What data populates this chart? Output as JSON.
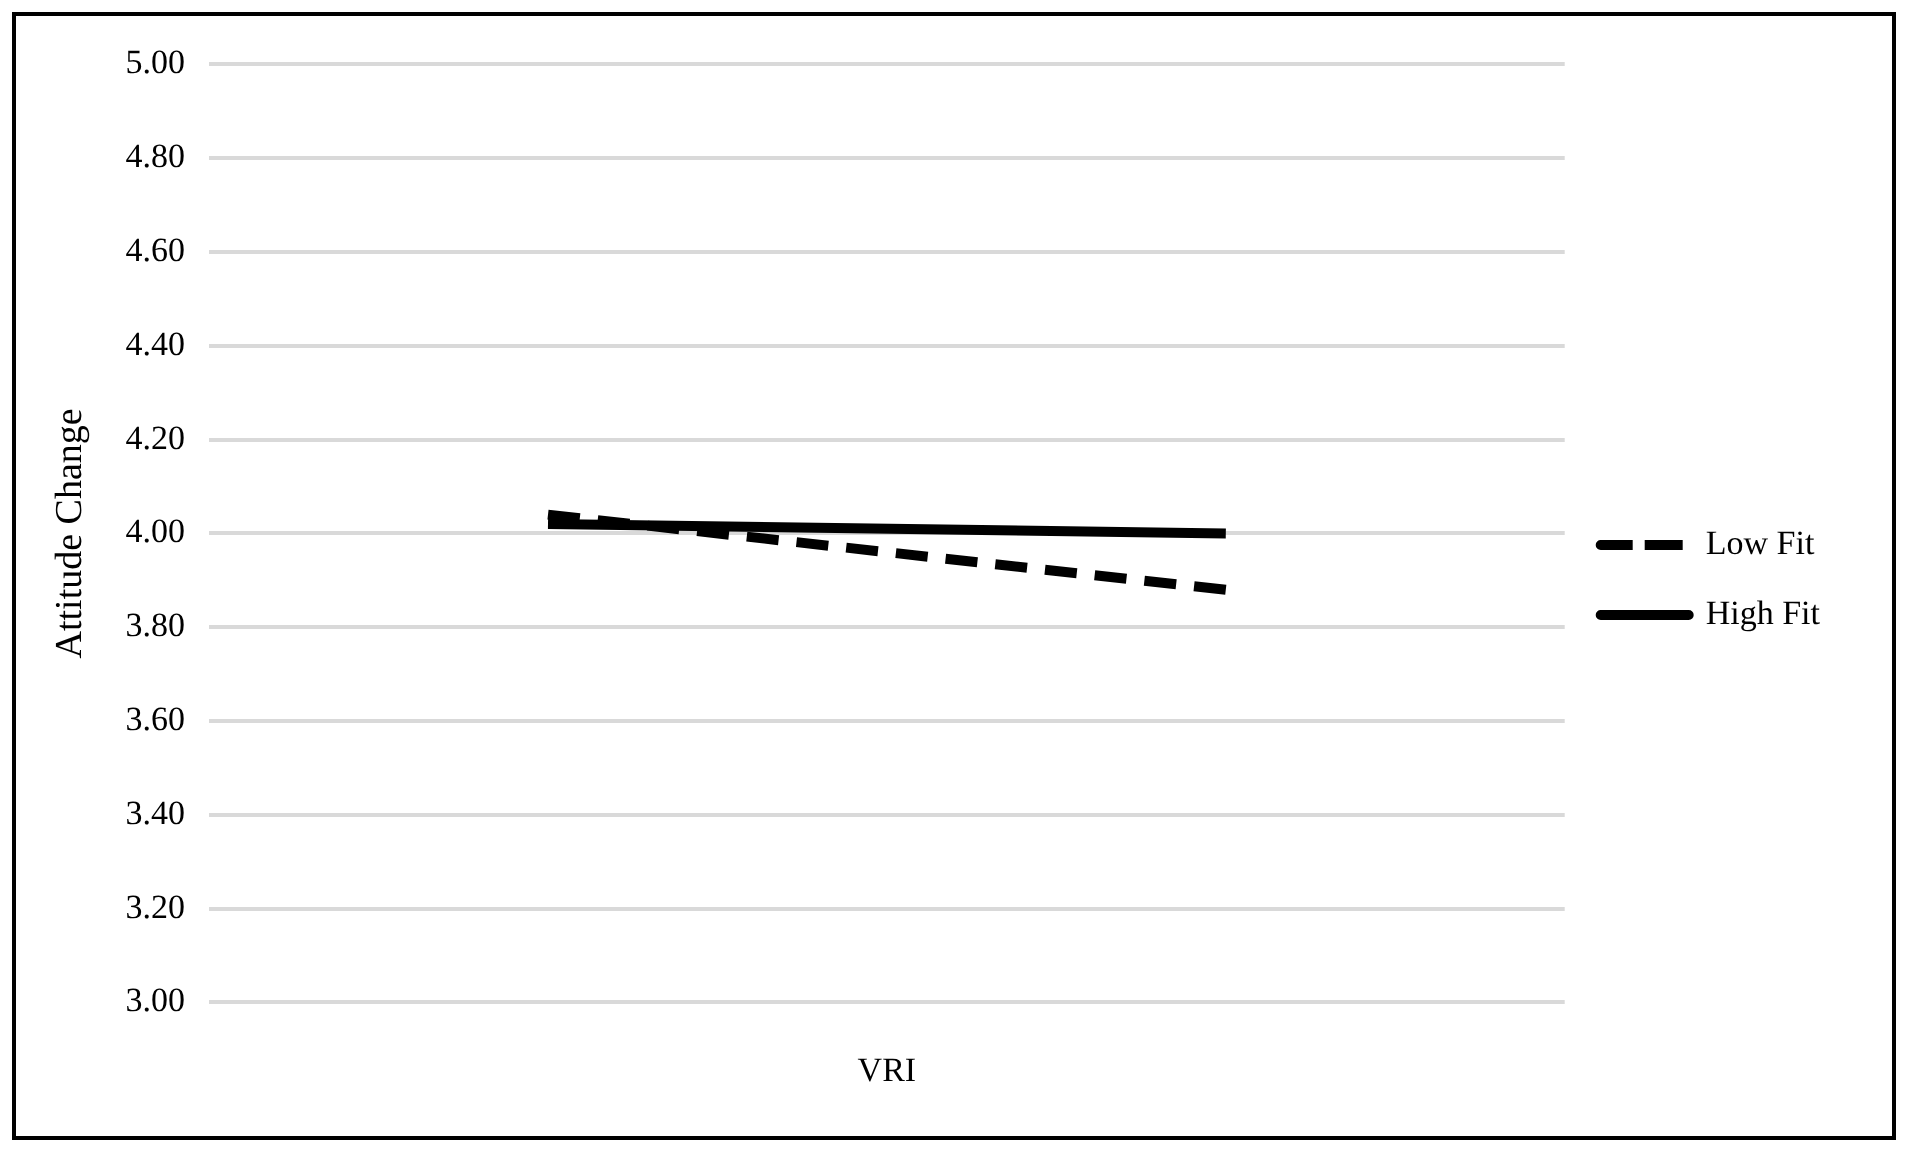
{
  "chart_data": {
    "type": "line",
    "xlabel": "VRI",
    "ylabel": "Attitude Change",
    "categories": [
      null,
      null
    ],
    "series": [
      {
        "name": "Low Fit",
        "color": "#000000",
        "values": [
          4.04,
          3.88
        ],
        "line_style": "dashed"
      },
      {
        "name": "High Fit",
        "color": "#000000",
        "values": [
          4.02,
          4.0
        ],
        "line_style": "solid"
      }
    ],
    "ylim": [
      3.0,
      5.0
    ],
    "yticks": [
      {
        "value": 3,
        "label": "3.00"
      },
      {
        "value": 3.2,
        "label": "3.20"
      },
      {
        "value": 3.4,
        "label": "3.40"
      },
      {
        "value": 3.6,
        "label": "3.60"
      },
      {
        "value": 3.8,
        "label": "3.80"
      },
      {
        "value": 4,
        "label": "4.00"
      },
      {
        "value": 4.2,
        "label": "4.20"
      },
      {
        "value": 4.4,
        "label": "4.40"
      },
      {
        "value": 4.6,
        "label": "4.60"
      },
      {
        "value": 4.8,
        "label": "4.80"
      },
      {
        "value": 5,
        "label": "5.00"
      }
    ],
    "grid": "y",
    "legend": "right",
    "marker": "none"
  }
}
